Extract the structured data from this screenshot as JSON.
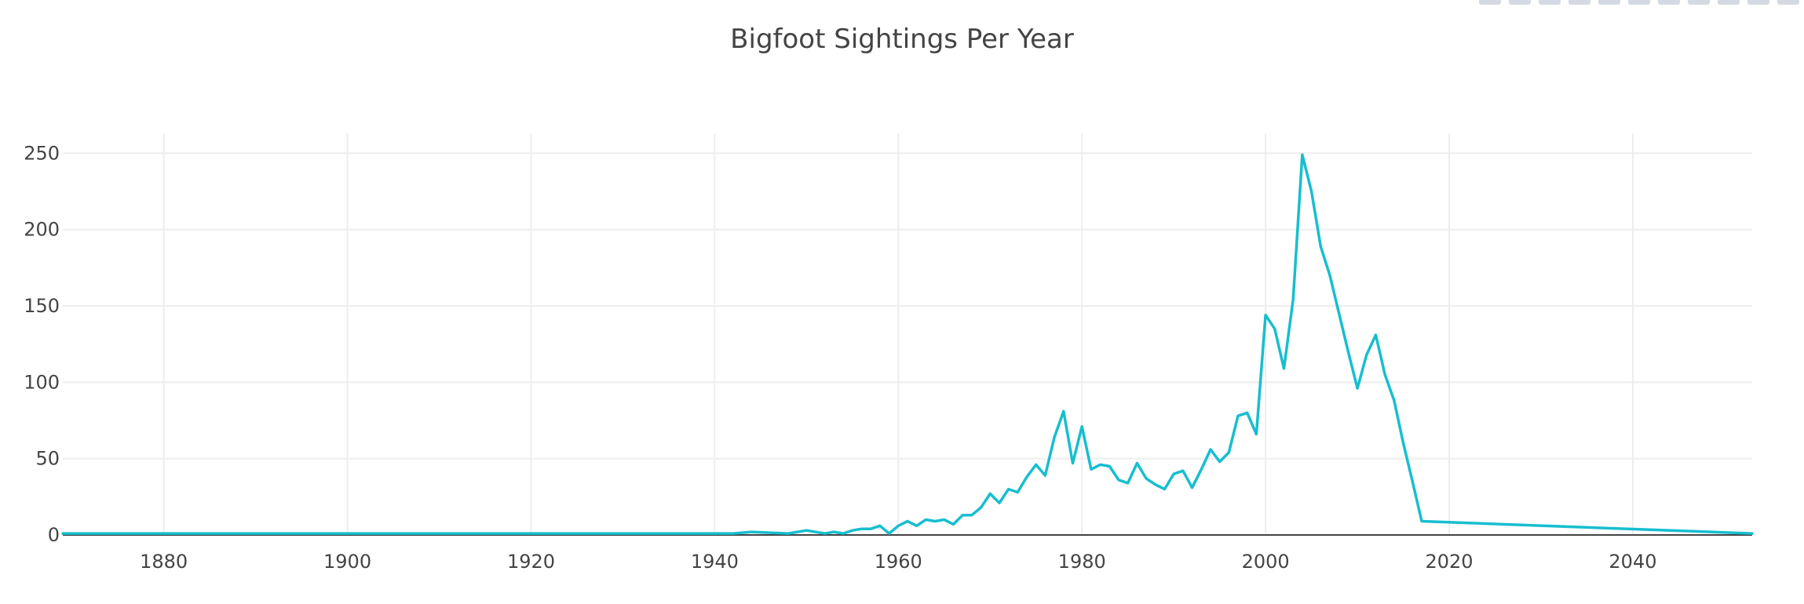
{
  "chart_data": {
    "type": "line",
    "title": "Bigfoot Sightings Per Year",
    "xlabel": "",
    "ylabel": "",
    "xlim": [
      1869,
      2053
    ],
    "ylim": [
      0,
      263
    ],
    "x_ticks": [
      1880,
      1900,
      1920,
      1940,
      1960,
      1980,
      2000,
      2020,
      2040
    ],
    "y_ticks": [
      0,
      50,
      100,
      150,
      200,
      250
    ],
    "grid": true,
    "line_color": "#17becf",
    "series": [
      {
        "x": [
          1869,
          1942,
          1944,
          1948,
          1950,
          1952,
          1953,
          1954,
          1955,
          1956,
          1957,
          1958,
          1959,
          1960,
          1961,
          1962,
          1963,
          1964,
          1965,
          1966,
          1967,
          1968,
          1969,
          1970,
          1971,
          1972,
          1973,
          1974,
          1975,
          1976,
          1977,
          1978,
          1979,
          1980,
          1981,
          1982,
          1983,
          1984,
          1985,
          1986,
          1987,
          1988,
          1989,
          1990,
          1991,
          1992,
          1993,
          1994,
          1995,
          1996,
          1997,
          1998,
          1999,
          2000,
          2001,
          2002,
          2003,
          2004,
          2005,
          2006,
          2007,
          2008,
          2009,
          2010,
          2011,
          2012,
          2013,
          2014,
          2015,
          2016,
          2017,
          2053
        ],
        "y": [
          1,
          1,
          2,
          1,
          3,
          1,
          2,
          1,
          3,
          4,
          4,
          6,
          1,
          6,
          9,
          6,
          10,
          9,
          10,
          7,
          13,
          13,
          18,
          27,
          21,
          30,
          28,
          38,
          46,
          39,
          64,
          81,
          47,
          71,
          43,
          46,
          45,
          36,
          34,
          47,
          37,
          33,
          30,
          40,
          42,
          31,
          43,
          56,
          48,
          54,
          78,
          80,
          66,
          144,
          135,
          109,
          154,
          249,
          225,
          189,
          170,
          145,
          120,
          96,
          118,
          131,
          105,
          88,
          60,
          35,
          9,
          1
        ]
      }
    ]
  }
}
